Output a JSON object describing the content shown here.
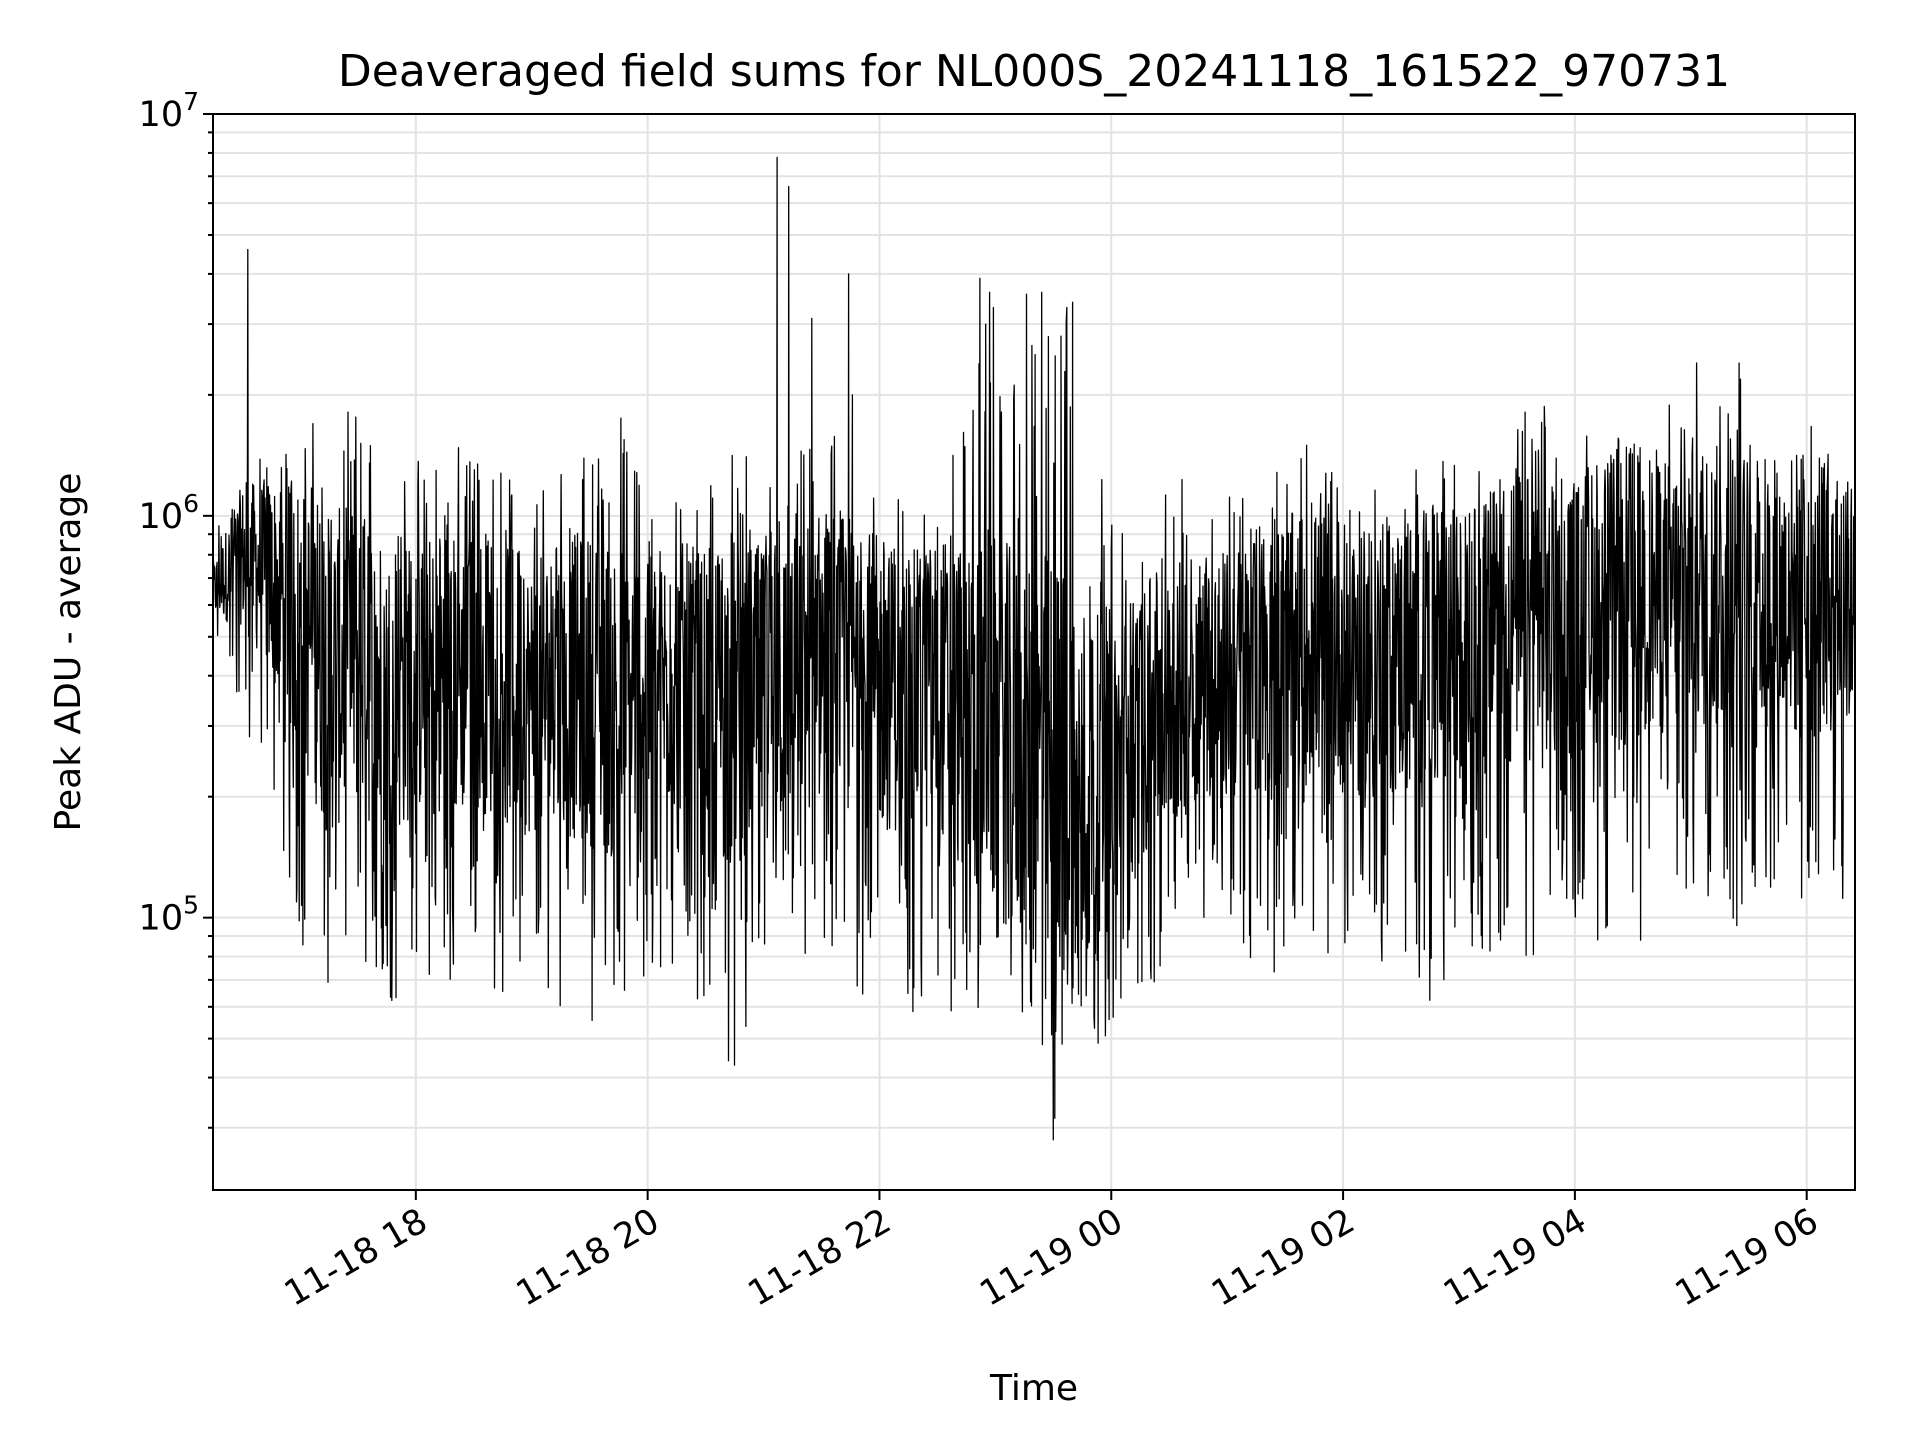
{
  "chart_data": {
    "type": "line",
    "title": "Deaveraged field sums for NL000S_20241118_161522_970731",
    "xlabel": "Time",
    "ylabel": "Peak ADU - average",
    "yscale": "log",
    "ylim": [
      21000,
      10000000
    ],
    "xlim": [
      "2024-11-18 16:15",
      "2024-11-19 06:25"
    ],
    "x_ticks": [
      {
        "time": "2024-11-18 18:00",
        "label": "11-18 18"
      },
      {
        "time": "2024-11-18 20:00",
        "label": "11-18 20"
      },
      {
        "time": "2024-11-18 22:00",
        "label": "11-18 22"
      },
      {
        "time": "2024-11-19 00:00",
        "label": "11-19 00"
      },
      {
        "time": "2024-11-19 02:00",
        "label": "11-19 02"
      },
      {
        "time": "2024-11-19 04:00",
        "label": "11-19 04"
      },
      {
        "time": "2024-11-19 06:00",
        "label": "11-19 06"
      }
    ],
    "y_ticks": [
      {
        "value": 100000,
        "base": "10",
        "exp": "5"
      },
      {
        "value": 1000000,
        "base": "10",
        "exp": "6"
      },
      {
        "value": 10000000,
        "base": "10",
        "exp": "7"
      }
    ],
    "grid": true,
    "line_color": "#000000",
    "series": [
      {
        "x": [
          "2024-11-18 16:15",
          "2024-11-18 16:30",
          "2024-11-18 16:45",
          "2024-11-18 17:00",
          "2024-11-18 17:15",
          "2024-11-18 17:30",
          "2024-11-18 17:45",
          "2024-11-18 18:00",
          "2024-11-18 18:15",
          "2024-11-18 18:30",
          "2024-11-18 18:45",
          "2024-11-18 19:00",
          "2024-11-18 19:15",
          "2024-11-18 19:30",
          "2024-11-18 19:45",
          "2024-11-18 20:00",
          "2024-11-18 20:15",
          "2024-11-18 20:30",
          "2024-11-18 20:45",
          "2024-11-18 21:00",
          "2024-11-18 21:15",
          "2024-11-18 21:30",
          "2024-11-18 21:45",
          "2024-11-18 22:00",
          "2024-11-18 22:15",
          "2024-11-18 22:30",
          "2024-11-18 22:45",
          "2024-11-18 23:00",
          "2024-11-18 23:15",
          "2024-11-18 23:30",
          "2024-11-18 23:45",
          "2024-11-19 00:00",
          "2024-11-19 00:15",
          "2024-11-19 00:30",
          "2024-11-19 00:45",
          "2024-11-19 01:00",
          "2024-11-19 01:15",
          "2024-11-19 01:30",
          "2024-11-19 01:45",
          "2024-11-19 02:00",
          "2024-11-19 02:15",
          "2024-11-19 02:30",
          "2024-11-19 02:45",
          "2024-11-19 03:00",
          "2024-11-19 03:15",
          "2024-11-19 03:30",
          "2024-11-19 03:45",
          "2024-11-19 04:00",
          "2024-11-19 04:15",
          "2024-11-19 04:30",
          "2024-11-19 04:45",
          "2024-11-19 05:00",
          "2024-11-19 05:15",
          "2024-11-19 05:30",
          "2024-11-19 05:45",
          "2024-11-19 06:00",
          "2024-11-19 06:15"
        ],
        "low": [
          500000,
          300000,
          180000,
          85000,
          60000,
          75000,
          55000,
          80000,
          60000,
          90000,
          55000,
          75000,
          60000,
          55000,
          60000,
          65000,
          70000,
          60000,
          40000,
          60000,
          75000,
          70000,
          62000,
          60000,
          58000,
          55000,
          48000,
          75000,
          55000,
          28000,
          47000,
          50000,
          60000,
          65000,
          100000,
          100000,
          70000,
          75000,
          90000,
          70000,
          65000,
          75000,
          62000,
          80000,
          75000,
          65000,
          95000,
          95000,
          85000,
          70000,
          95000,
          110000,
          100000,
          75000,
          110000,
          65000,
          110000
        ],
        "typical": [
          650000,
          800000,
          700000,
          550000,
          400000,
          450000,
          350000,
          400000,
          380000,
          420000,
          400000,
          350000,
          380000,
          370000,
          350000,
          380000,
          400000,
          360000,
          330000,
          360000,
          400000,
          450000,
          420000,
          380000,
          360000,
          380000,
          330000,
          300000,
          260000,
          220000,
          200000,
          220000,
          300000,
          350000,
          400000,
          400000,
          420000,
          450000,
          480000,
          460000,
          430000,
          450000,
          430000,
          460000,
          500000,
          550000,
          520000,
          560000,
          600000,
          620000,
          640000,
          650000,
          660000,
          600000,
          620000,
          640000,
          600000
        ],
        "high": [
          900000,
          1300000,
          1500000,
          1700000,
          1800000,
          1900000,
          1500000,
          1400000,
          1500000,
          1600000,
          1400000,
          1300000,
          1400000,
          1500000,
          1900000,
          1300000,
          1200000,
          1200000,
          1500000,
          1300000,
          1400000,
          1700000,
          1600000,
          1300000,
          1100000,
          1300000,
          1800000,
          3800000,
          3600000,
          3500000,
          3200000,
          1100000,
          1050000,
          1200000,
          1300000,
          1400000,
          1300000,
          1400000,
          1600000,
          1350000,
          1500000,
          1300000,
          1700000,
          1500000,
          1600000,
          1800000,
          1900000,
          1800000,
          1900000,
          2000000,
          1900000,
          2000000,
          2100000,
          2300000,
          1900000,
          1700000,
          1600000
        ]
      }
    ],
    "spikes": [
      {
        "time": "2024-11-18 16:33",
        "value": 4600000
      },
      {
        "time": "2024-11-18 21:07",
        "value": 7800000
      },
      {
        "time": "2024-11-18 21:13",
        "value": 6600000
      },
      {
        "time": "2024-11-18 21:25",
        "value": 3100000
      },
      {
        "time": "2024-11-18 21:44",
        "value": 4000000
      },
      {
        "time": "2024-11-18 21:46",
        "value": 2000000
      },
      {
        "time": "2024-11-18 22:52",
        "value": 3900000
      },
      {
        "time": "2024-11-18 22:55",
        "value": 3000000
      },
      {
        "time": "2024-11-18 22:57",
        "value": 3600000
      },
      {
        "time": "2024-11-18 22:59",
        "value": 3300000
      },
      {
        "time": "2024-11-18 23:24",
        "value": 3600000
      },
      {
        "time": "2024-11-18 23:31",
        "value": 2500000
      },
      {
        "time": "2024-11-18 23:34",
        "value": 2800000
      },
      {
        "time": "2024-11-18 23:37",
        "value": 3300000
      },
      {
        "time": "2024-11-18 23:40",
        "value": 3400000
      },
      {
        "time": "2024-11-18 23:30",
        "value": 28000
      },
      {
        "time": "2024-11-19 05:03",
        "value": 2400000
      },
      {
        "time": "2024-11-19 05:25",
        "value": 2400000
      }
    ]
  }
}
